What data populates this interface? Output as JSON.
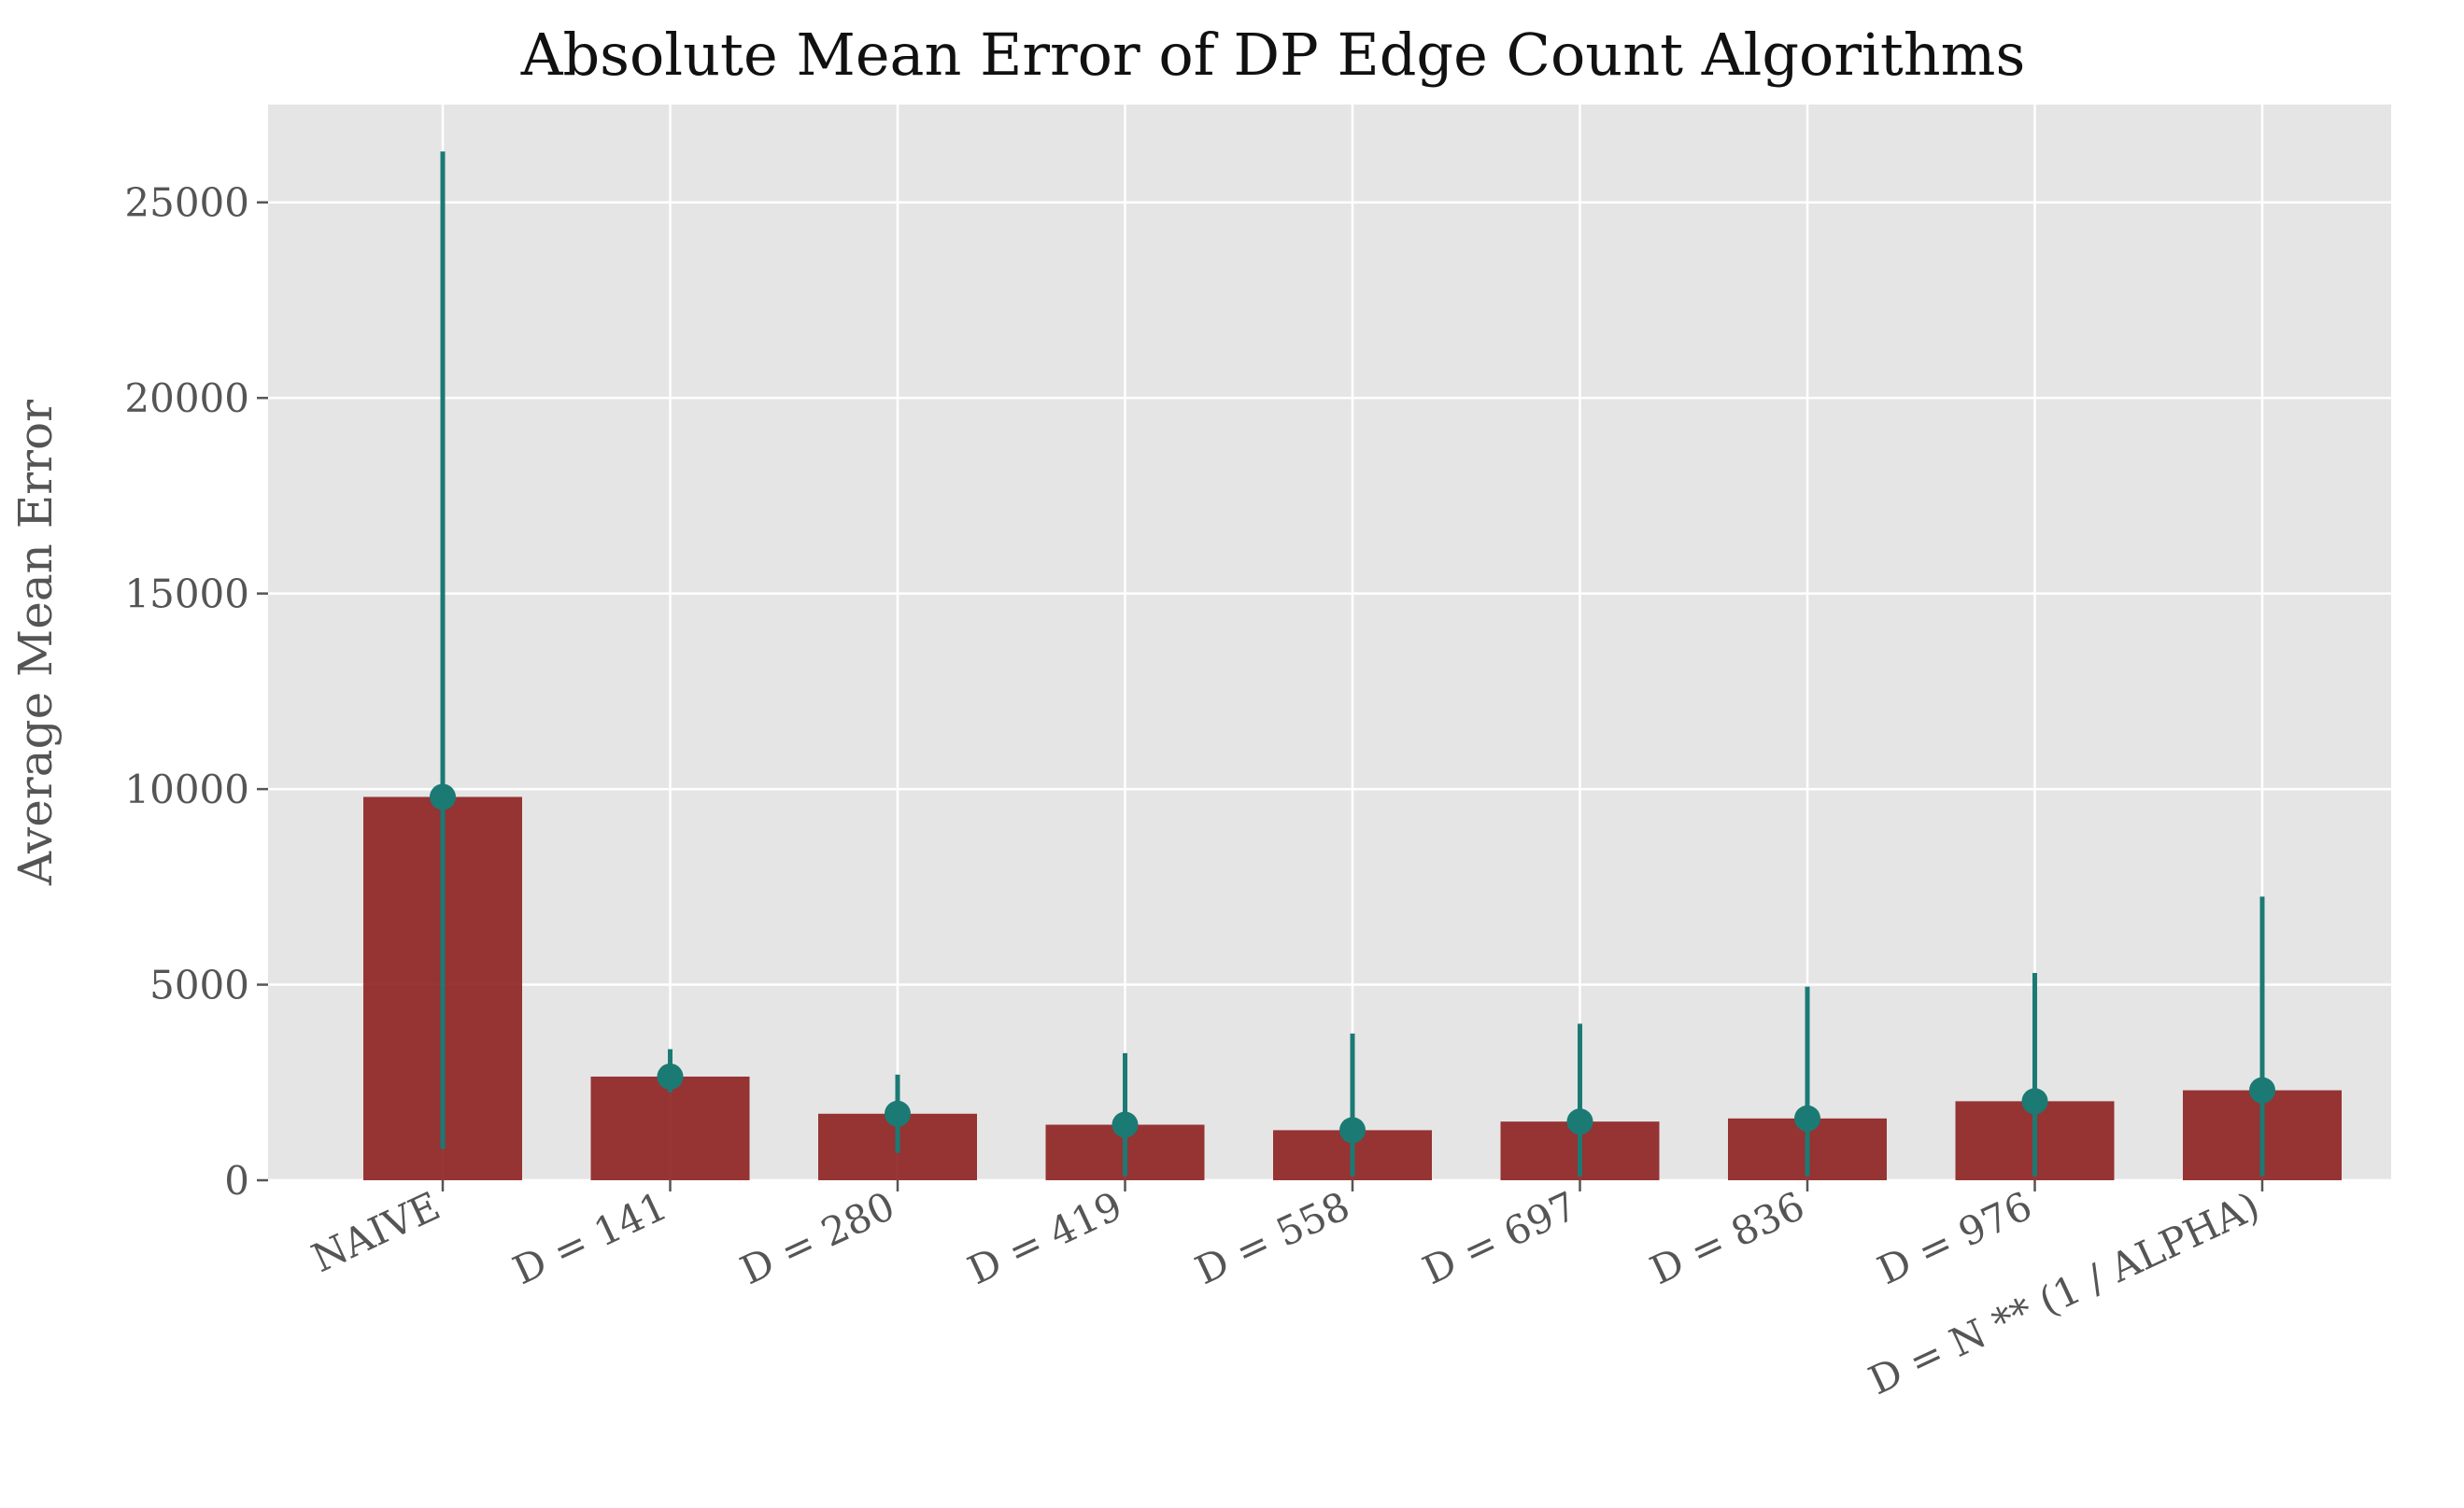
{
  "colors": {
    "plot_background": "#e5e5e5",
    "grid": "#ffffff",
    "bar": "#8b1a1a",
    "marker": "#1b7a74",
    "tick_text": "#555555",
    "title_text": "#111111"
  },
  "chart_data": {
    "type": "bar",
    "title": "Absolute Mean Error of DP Edge Count Algorithms",
    "xlabel": "",
    "ylabel": "Average Mean Error",
    "ylim": [
      0,
      27500
    ],
    "yticks": [
      0,
      5000,
      10000,
      15000,
      20000,
      25000
    ],
    "grid": true,
    "legend": "none",
    "categories": [
      "NAIVE",
      "D = 141",
      "D = 280",
      "D = 419",
      "D = 558",
      "D = 697",
      "D = 836",
      "D = 976",
      "D = N ** (1 / ALPHA)"
    ],
    "values": [
      9800,
      2650,
      1700,
      1420,
      1280,
      1500,
      1580,
      2020,
      2300
    ],
    "error_low": [
      800,
      2250,
      700,
      100,
      100,
      100,
      100,
      100,
      100
    ],
    "error_high": [
      26300,
      3350,
      2700,
      3250,
      3750,
      4000,
      4950,
      5300,
      7250
    ]
  }
}
